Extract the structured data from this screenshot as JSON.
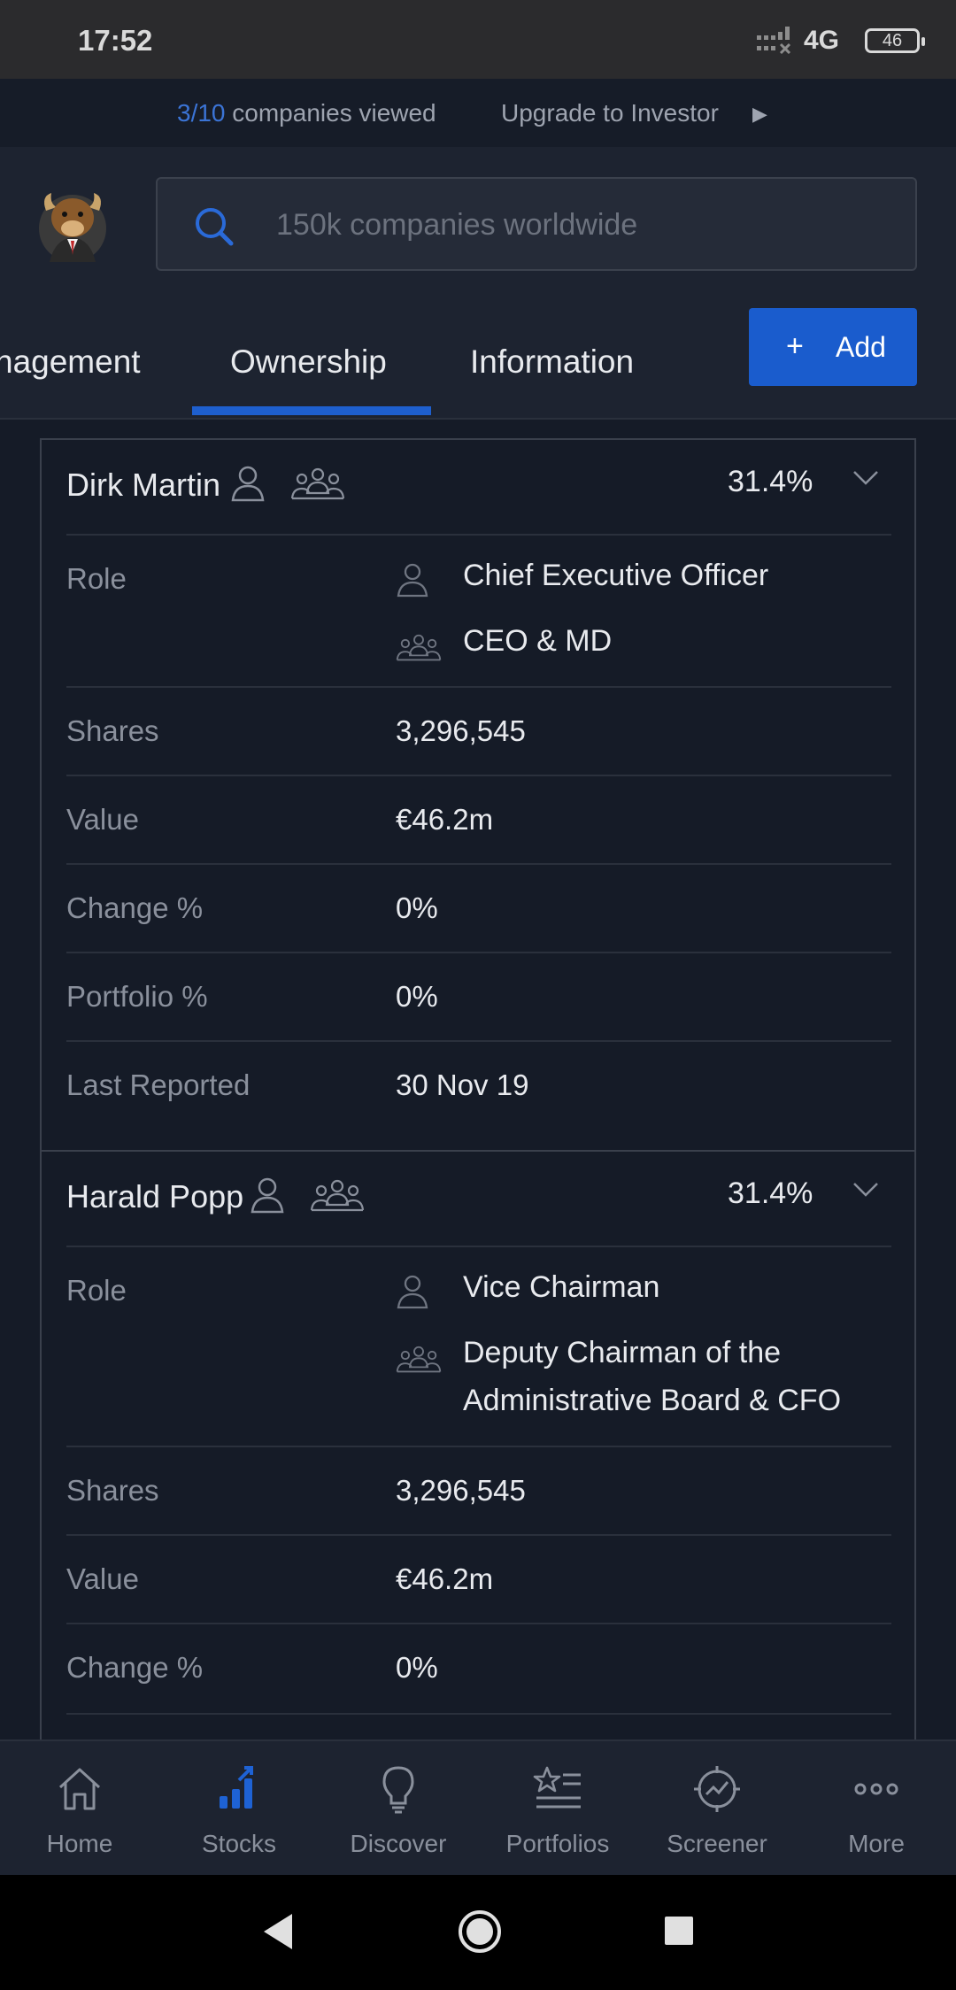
{
  "status_bar": {
    "time": "17:52",
    "network": "4G",
    "battery": "46"
  },
  "banner": {
    "viewed_count": "3/10",
    "viewed_text": "companies viewed",
    "upgrade_text": "Upgrade to Investor"
  },
  "search": {
    "placeholder": "150k companies worldwide"
  },
  "tabs": [
    {
      "label": "nagement"
    },
    {
      "label": "Ownership",
      "active": true
    },
    {
      "label": "Information"
    }
  ],
  "add_button": {
    "icon": "+",
    "label": "Add"
  },
  "insiders": [
    {
      "name": "Dirk Martin",
      "percent": "31.4%",
      "role_individual": "Chief Executive Officer",
      "role_board_lines": [
        "CEO & MD"
      ],
      "fields": [
        {
          "label": "Shares",
          "value": "3,296,545"
        },
        {
          "label": "Value",
          "value": "€46.2m"
        },
        {
          "label": "Change %",
          "value": "0%"
        },
        {
          "label": "Portfolio %",
          "value": "0%"
        },
        {
          "label": "Last Reported",
          "value": "30 Nov 19"
        }
      ]
    },
    {
      "name": "Harald Popp",
      "percent": "31.4%",
      "role_individual": "Vice Chairman",
      "role_board_lines": [
        "Deputy Chairman of the",
        "Administrative Board & CFO"
      ],
      "fields": [
        {
          "label": "Shares",
          "value": "3,296,545"
        },
        {
          "label": "Value",
          "value": "€46.2m"
        },
        {
          "label": "Change %",
          "value": "0%"
        }
      ]
    }
  ],
  "role_label": "Role",
  "bottom_nav": [
    {
      "label": "Home",
      "icon": "home-icon"
    },
    {
      "label": "Stocks",
      "icon": "stocks-icon",
      "active": true
    },
    {
      "label": "Discover",
      "icon": "lightbulb-icon"
    },
    {
      "label": "Portfolios",
      "icon": "portfolios-icon"
    },
    {
      "label": "Screener",
      "icon": "screener-icon"
    },
    {
      "label": "More",
      "icon": "more-icon"
    }
  ],
  "colors": {
    "accent": "#1a5ccd",
    "background": "#151b27",
    "header": "#1d2330"
  }
}
